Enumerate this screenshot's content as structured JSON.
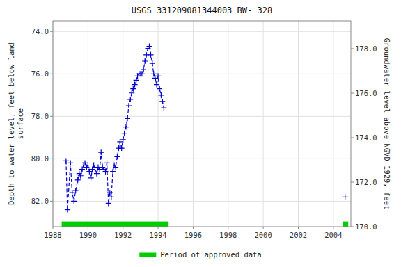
{
  "chart_data": {
    "type": "line",
    "title": "USGS 331209081344003 BW- 328",
    "y_label": "Depth to water level, feet below land\nsurface",
    "y2_label": "Groundwater level above NGVD 1929, feet",
    "xlim": [
      1988,
      2005
    ],
    "ylim": [
      83.2,
      73.5
    ],
    "y2lim": [
      170.0,
      179.25
    ],
    "xticks": [
      1988,
      1990,
      1992,
      1994,
      1996,
      1998,
      2000,
      2002,
      2004
    ],
    "yticks": [
      {
        "value": 82,
        "label": "82.0"
      },
      {
        "value": 80,
        "label": "80.0"
      },
      {
        "value": 78,
        "label": "78.0"
      },
      {
        "value": 76,
        "label": "76.0"
      },
      {
        "value": 74,
        "label": "74.0"
      }
    ],
    "y2ticks": [
      {
        "value": 170,
        "label": "170.0"
      },
      {
        "value": 172,
        "label": "172.0"
      },
      {
        "value": 174,
        "label": "174.0"
      },
      {
        "value": 176,
        "label": "176.0"
      },
      {
        "value": 178,
        "label": "178.0"
      }
    ],
    "grid": true,
    "legend": "bottom",
    "x": [
      1988.75,
      1988.83,
      1989.0,
      1989.1,
      1989.2,
      1989.3,
      1989.42,
      1989.5,
      1989.58,
      1989.67,
      1989.75,
      1989.83,
      1989.92,
      1990.0,
      1990.08,
      1990.17,
      1990.25,
      1990.33,
      1990.5,
      1990.58,
      1990.67,
      1990.75,
      1990.83,
      1990.92,
      1991.0,
      1991.08,
      1991.17,
      1991.25,
      1991.33,
      1991.42,
      1991.5,
      1991.58,
      1991.67,
      1991.75,
      1991.83,
      1991.92,
      1992.0,
      1992.08,
      1992.17,
      1992.25,
      1992.33,
      1992.42,
      1992.5,
      1992.58,
      1992.67,
      1992.75,
      1992.83,
      1992.92,
      1993.0,
      1993.08,
      1993.17,
      1993.25,
      1993.33,
      1993.42,
      1993.5,
      1993.58,
      1993.67,
      1993.75,
      1993.83,
      1993.92,
      1994.0,
      1994.08,
      1994.17,
      1994.25,
      1994.33,
      null,
      2004.67
    ],
    "series": [
      {
        "color": "#0000CC",
        "marker": "plus",
        "line_style": "dashed",
        "values": [
          80.1,
          82.4,
          80.2,
          81.6,
          82.0,
          81.5,
          81.0,
          80.7,
          80.8,
          80.5,
          80.3,
          80.2,
          80.4,
          80.3,
          80.6,
          80.9,
          80.5,
          80.3,
          80.7,
          80.4,
          80.5,
          79.7,
          80.4,
          80.5,
          80.6,
          80.2,
          82.1,
          81.6,
          81.8,
          80.6,
          80.3,
          80.4,
          79.9,
          79.5,
          79.2,
          79.5,
          79.1,
          78.8,
          78.5,
          78.1,
          77.5,
          77.2,
          76.9,
          76.7,
          76.5,
          76.3,
          76.1,
          76.0,
          76.0,
          76.0,
          75.8,
          75.4,
          75.1,
          74.8,
          74.7,
          75.1,
          75.5,
          76.0,
          76.2,
          76.5,
          76.1,
          76.7,
          77.0,
          77.3,
          77.6,
          null,
          81.8
        ]
      }
    ],
    "approved_periods": {
      "name": "Period of approved data",
      "color": "#00CC00",
      "ranges": [
        [
          1988.5,
          1994.6
        ],
        [
          2004.55,
          2004.85
        ]
      ]
    }
  }
}
